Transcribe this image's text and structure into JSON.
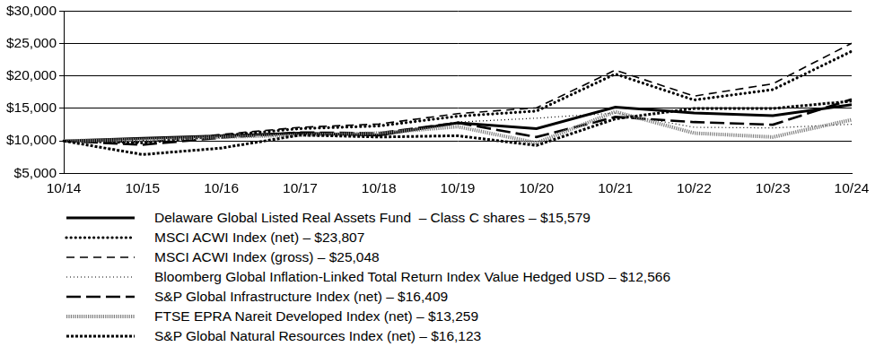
{
  "chart_data": {
    "type": "line",
    "categories": [
      "10/14",
      "10/15",
      "10/16",
      "10/17",
      "10/18",
      "10/19",
      "10/20",
      "10/21",
      "10/22",
      "10/23",
      "10/24"
    ],
    "ylim": [
      5000,
      30000
    ],
    "yticks": [
      {
        "value": 5000,
        "label": "$5,000"
      },
      {
        "value": 10000,
        "label": "$10,000"
      },
      {
        "value": 15000,
        "label": "$15,000"
      },
      {
        "value": 20000,
        "label": "$20,000"
      },
      {
        "value": 25000,
        "label": "$25,000"
      },
      {
        "value": 30000,
        "label": "$30,000"
      }
    ],
    "grid": true,
    "legend": "bottom",
    "series": [
      {
        "name": "Delaware Global Listed Real Assets Fund  – Class C shares – $15,579",
        "color": "#000000",
        "line_style": "solid",
        "values": [
          10000,
          10400,
          10800,
          11200,
          10900,
          12800,
          11900,
          15200,
          14300,
          13900,
          15579
        ]
      },
      {
        "name": "MSCI ACWI Index (net) – $23,807",
        "color": "#000000",
        "line_style": "dotted",
        "values": [
          10000,
          9700,
          10800,
          11900,
          12300,
          13800,
          14600,
          20300,
          16300,
          17900,
          23807
        ]
      },
      {
        "name": "MSCI ACWI Index (gross) – $25,048",
        "color": "#000000",
        "line_style": "dashed",
        "values": [
          10000,
          9800,
          11000,
          12100,
          12600,
          14200,
          15100,
          20900,
          16900,
          18800,
          25048
        ]
      },
      {
        "name": "Bloomberg Global Inflation-Linked Total Return Index Value Hedged USD – $12,566",
        "color": "#000000",
        "line_style": "fine-dotted",
        "values": [
          10000,
          10100,
          10500,
          11000,
          11200,
          12900,
          13500,
          14300,
          12100,
          12000,
          12566
        ]
      },
      {
        "name": "S&P Global Infrastructure Index (net) – $16,409",
        "color": "#000000",
        "line_style": "long-dashed",
        "values": [
          10000,
          9400,
          10500,
          11300,
          11200,
          12800,
          10600,
          13700,
          12900,
          12500,
          16409
        ]
      },
      {
        "name": "FTSE EPRA Nareit Developed Index (net) – $13,259",
        "color": "#808080",
        "line_style": "hatched",
        "values": [
          10000,
          10200,
          10600,
          10900,
          11200,
          12200,
          9700,
          14500,
          11200,
          10600,
          13259
        ]
      },
      {
        "name": "S&P Global Natural Resources Index (net) – $16,123",
        "color": "#000000",
        "line_style": "square-dotted",
        "values": [
          10000,
          7900,
          8900,
          10900,
          10600,
          10800,
          9300,
          13400,
          15000,
          15000,
          16123
        ]
      }
    ]
  }
}
